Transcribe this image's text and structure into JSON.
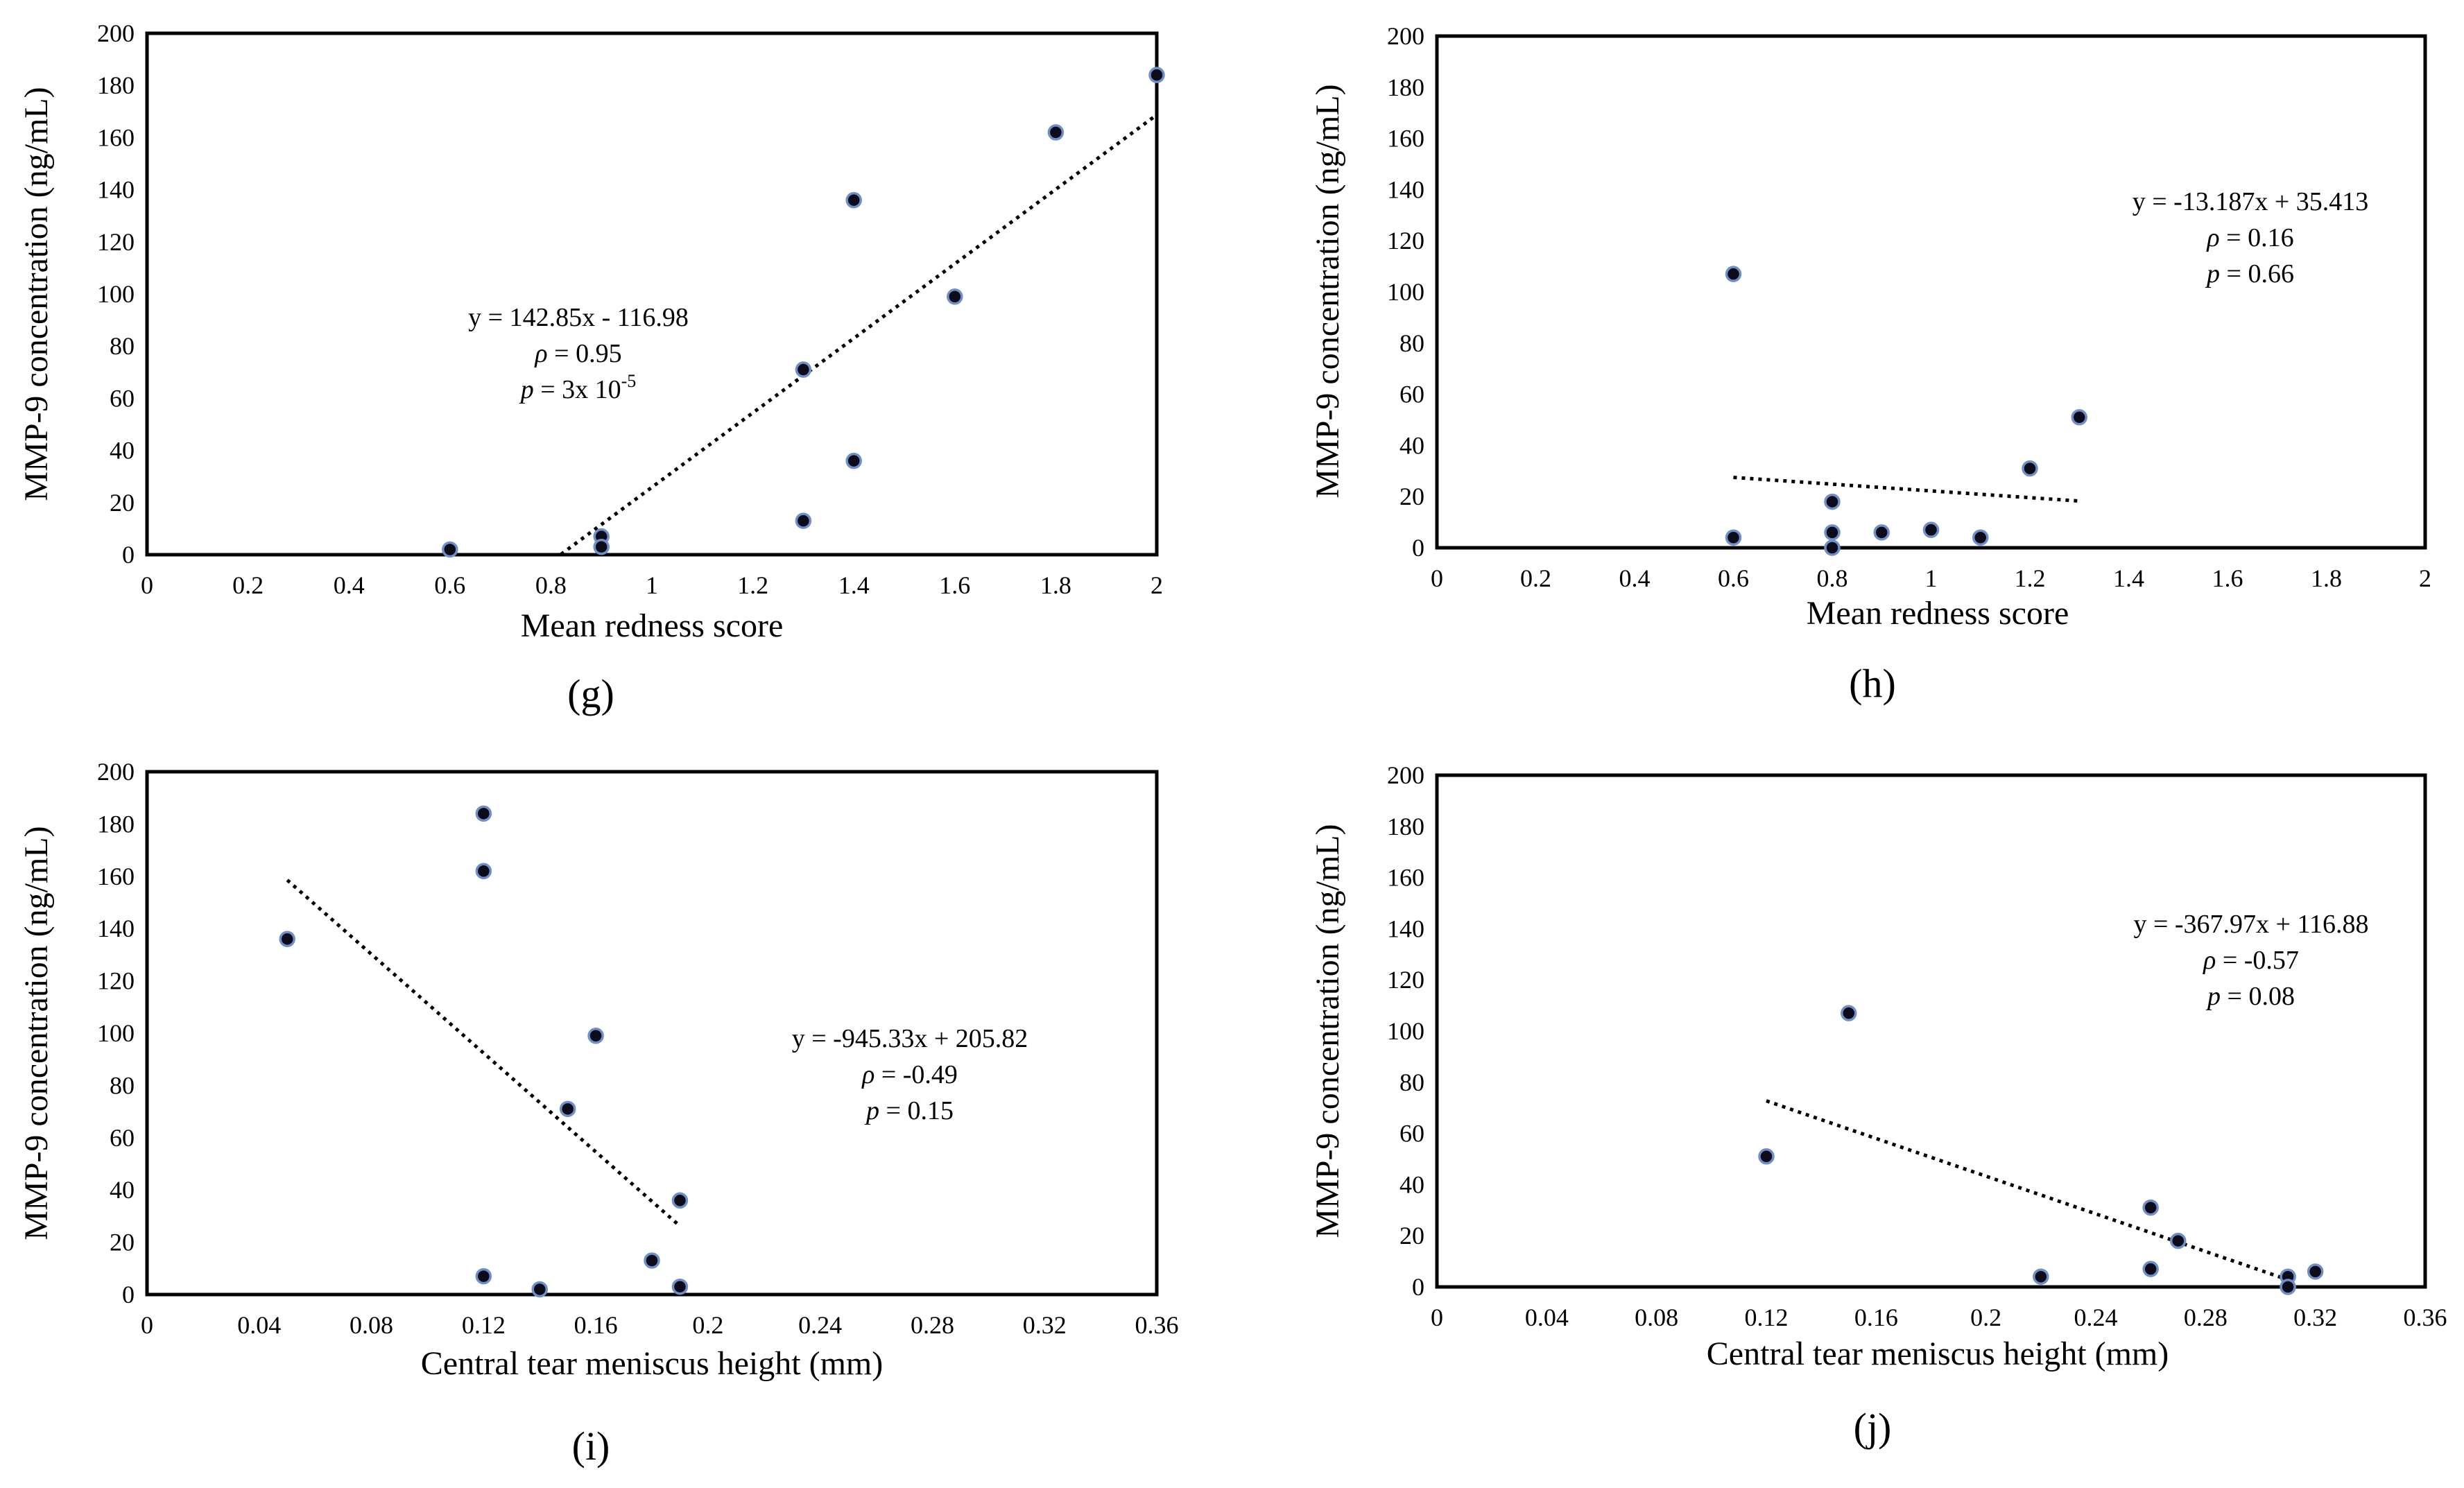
{
  "chart_data": [
    {
      "type": "scatter",
      "panel_label": "(g)",
      "ylabel": "MMP-9 concentration (ng/mL)",
      "xlabel": "Mean redness score",
      "xlim": [
        0,
        2
      ],
      "ylim": [
        0,
        200
      ],
      "xticks": [
        "0",
        "0.2",
        "0.4",
        "0.6",
        "0.8",
        "1",
        "1.2",
        "1.4",
        "1.6",
        "1.8",
        "2"
      ],
      "yticks": [
        "0",
        "20",
        "40",
        "60",
        "80",
        "100",
        "120",
        "140",
        "160",
        "180",
        "200"
      ],
      "grid": false,
      "legend": "none",
      "points": [
        [
          0.6,
          2
        ],
        [
          0.9,
          7
        ],
        [
          0.9,
          3
        ],
        [
          1.3,
          71
        ],
        [
          1.3,
          13
        ],
        [
          1.4,
          136
        ],
        [
          1.4,
          36
        ],
        [
          1.6,
          99
        ],
        [
          1.8,
          162
        ],
        [
          2.0,
          184
        ]
      ],
      "trendline": {
        "x": [
          0.82,
          2.0
        ],
        "slope": 142.85,
        "intercept": -116.98
      },
      "annotation": {
        "equation": "y = 142.85x - 116.98",
        "rho_symbol": "ρ",
        "rho_text": " = 0.95",
        "p_symbol": "p",
        "p_text": " = 3x 10",
        "p_exponent": "-5"
      }
    },
    {
      "type": "scatter",
      "panel_label": "(h)",
      "ylabel": "MMP-9 concentration (ng/mL)",
      "xlabel": "Mean redness score",
      "xlim": [
        0,
        2
      ],
      "ylim": [
        0,
        200
      ],
      "xticks": [
        "0",
        "0.2",
        "0.4",
        "0.6",
        "0.8",
        "1",
        "1.2",
        "1.4",
        "1.6",
        "1.8",
        "2"
      ],
      "yticks": [
        "0",
        "20",
        "40",
        "60",
        "80",
        "100",
        "120",
        "140",
        "160",
        "180",
        "200"
      ],
      "grid": false,
      "legend": "none",
      "points": [
        [
          0.6,
          107
        ],
        [
          0.6,
          4
        ],
        [
          0.8,
          18
        ],
        [
          0.8,
          6
        ],
        [
          0.8,
          0
        ],
        [
          0.9,
          6
        ],
        [
          1.0,
          7
        ],
        [
          1.1,
          4
        ],
        [
          1.2,
          31
        ],
        [
          1.3,
          51
        ]
      ],
      "trendline": {
        "x": [
          0.6,
          1.3
        ],
        "slope": -13.187,
        "intercept": 35.413
      },
      "annotation": {
        "equation": "y = -13.187x + 35.413",
        "rho_symbol": "ρ",
        "rho_text": " = 0.16",
        "p_symbol": "p",
        "p_text": " = 0.66",
        "p_exponent": ""
      }
    },
    {
      "type": "scatter",
      "panel_label": "(i)",
      "ylabel": "MMP-9 concentration (ng/mL)",
      "xlabel": "Central tear meniscus height (mm)",
      "xlim": [
        0,
        0.36
      ],
      "ylim": [
        0,
        200
      ],
      "xticks": [
        "0",
        "0.04",
        "0.08",
        "0.12",
        "0.16",
        "0.2",
        "0.24",
        "0.28",
        "0.32",
        "0.36"
      ],
      "yticks": [
        "0",
        "20",
        "40",
        "60",
        "80",
        "100",
        "120",
        "140",
        "160",
        "180",
        "200"
      ],
      "grid": false,
      "legend": "none",
      "points": [
        [
          0.05,
          136
        ],
        [
          0.12,
          184
        ],
        [
          0.12,
          162
        ],
        [
          0.12,
          7
        ],
        [
          0.14,
          2
        ],
        [
          0.15,
          71
        ],
        [
          0.16,
          99
        ],
        [
          0.18,
          13
        ],
        [
          0.19,
          36
        ],
        [
          0.19,
          3
        ]
      ],
      "trendline": {
        "x": [
          0.05,
          0.19
        ],
        "slope": -945.33,
        "intercept": 205.82
      },
      "annotation": {
        "equation": "y = -945.33x + 205.82",
        "rho_symbol": "ρ",
        "rho_text": " = -0.49",
        "p_symbol": "p",
        "p_text": " = 0.15",
        "p_exponent": ""
      }
    },
    {
      "type": "scatter",
      "panel_label": "(j)",
      "ylabel": "MMP-9 concentration (ng/mL)",
      "xlabel": "Central tear meniscus height (mm)",
      "xlim": [
        0,
        0.36
      ],
      "ylim": [
        0,
        200
      ],
      "xticks": [
        "0",
        "0.04",
        "0.08",
        "0.12",
        "0.16",
        "0.2",
        "0.24",
        "0.28",
        "0.32",
        "0.36"
      ],
      "yticks": [
        "0",
        "20",
        "40",
        "60",
        "80",
        "100",
        "120",
        "140",
        "160",
        "180",
        "200"
      ],
      "grid": false,
      "legend": "none",
      "points": [
        [
          0.12,
          51
        ],
        [
          0.15,
          107
        ],
        [
          0.22,
          4
        ],
        [
          0.26,
          31
        ],
        [
          0.26,
          7
        ],
        [
          0.27,
          18
        ],
        [
          0.31,
          4
        ],
        [
          0.31,
          0
        ],
        [
          0.32,
          6
        ]
      ],
      "trendline": {
        "x": [
          0.12,
          0.31
        ],
        "slope": -367.97,
        "intercept": 116.88
      },
      "annotation": {
        "equation": "y = -367.97x + 116.88",
        "rho_symbol": "ρ",
        "rho_text": " = -0.57",
        "p_symbol": "p",
        "p_text": " = 0.08",
        "p_exponent": ""
      }
    }
  ]
}
